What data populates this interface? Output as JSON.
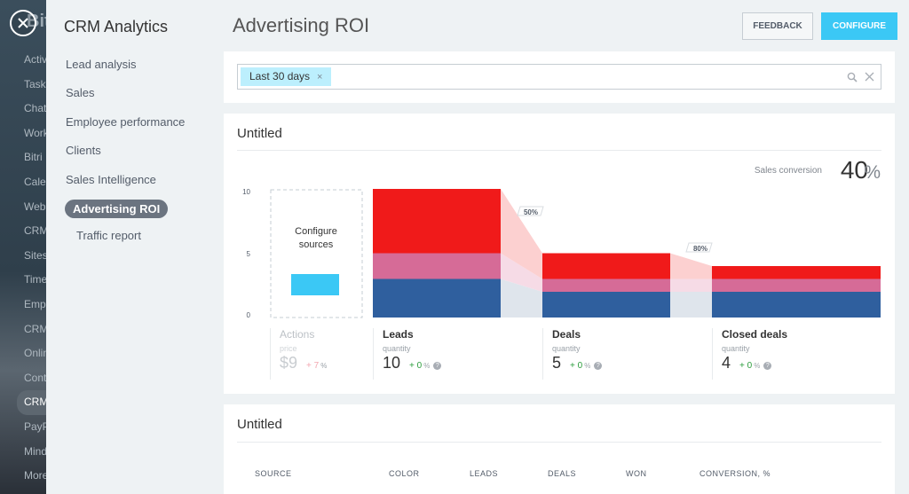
{
  "background_app": {
    "logo": "Bit",
    "menu": [
      "Activ",
      "Task",
      "Chat",
      "Work",
      "Bitri",
      "Cale",
      "Webs",
      "CRM",
      "Sites",
      "Time",
      "Emp",
      "CRM",
      "Onlin",
      "Cont",
      "CRM",
      "PayP",
      "Mind",
      "More"
    ],
    "active_index": 14
  },
  "sidebar": {
    "title": "CRM Analytics",
    "items": [
      {
        "label": "Lead analysis"
      },
      {
        "label": "Sales"
      },
      {
        "label": "Employee performance"
      },
      {
        "label": "Clients"
      },
      {
        "label": "Sales Intelligence"
      },
      {
        "label": "Advertising ROI",
        "active": true
      }
    ],
    "subitems": [
      {
        "label": "Traffic report"
      }
    ]
  },
  "header": {
    "title": "Advertising ROI",
    "feedback_label": "FEEDBACK",
    "configure_label": "CONFIGURE"
  },
  "filter": {
    "tag_label": "Last 30 days",
    "tag_remove": "×"
  },
  "widget1": {
    "title": "Untitled",
    "conversion_label": "Sales conversion",
    "conversion_value": "40",
    "conversion_unit": "%",
    "configure_sources_line1": "Configure",
    "configure_sources_line2": "sources",
    "y_ticks": [
      "10",
      "5",
      "0"
    ],
    "transitions": [
      "50%",
      "80%"
    ],
    "stats": [
      {
        "name": "Actions",
        "qlabel": "price",
        "value": "$9",
        "change": "+ 7",
        "unit": "%"
      },
      {
        "name": "Leads",
        "qlabel": "quantity",
        "value": "10",
        "change": "+ 0",
        "unit": "%"
      },
      {
        "name": "Deals",
        "qlabel": "quantity",
        "value": "5",
        "change": "+ 0",
        "unit": "%"
      },
      {
        "name": "Closed deals",
        "qlabel": "quantity",
        "value": "4",
        "change": "+ 0",
        "unit": "%"
      }
    ],
    "help_glyph": "?"
  },
  "widget2": {
    "title": "Untitled",
    "columns": [
      "SOURCE",
      "COLOR",
      "LEADS",
      "DEALS",
      "WON",
      "CONVERSION, %"
    ]
  },
  "chart_data": {
    "type": "bar",
    "categories": [
      "Leads",
      "Deals",
      "Closed deals"
    ],
    "ylim": [
      0,
      10
    ],
    "y_ticks": [
      0,
      5,
      10
    ],
    "stacked": true,
    "series": [
      {
        "color": "#2f5f9e",
        "values": [
          3,
          2,
          2
        ]
      },
      {
        "color": "#d66b97",
        "values": [
          2,
          1,
          1
        ]
      },
      {
        "color": "#f01a1a",
        "values": [
          5,
          2,
          1
        ]
      }
    ],
    "colors": {
      "accent": "#3bc8f5",
      "active_nav": "#6b7480"
    }
  }
}
